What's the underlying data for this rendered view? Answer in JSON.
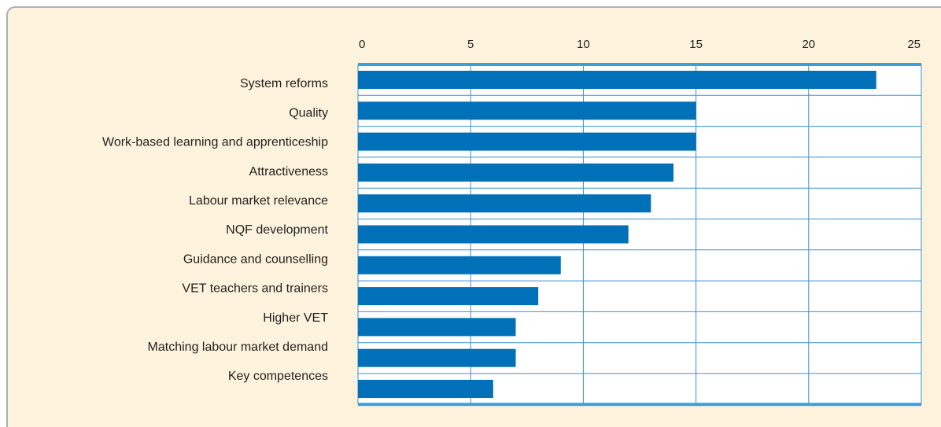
{
  "chart_data": {
    "type": "hbar",
    "categories": [
      "System reforms",
      "Quality",
      "Work-based learning and apprenticeship",
      "Attractiveness",
      "Labour market relevance",
      "NQF development",
      "Guidance and counselling",
      "VET teachers and trainers",
      "Higher VET",
      "Matching labour market demand",
      "Key competences"
    ],
    "values": [
      23,
      15,
      15,
      14,
      13,
      12,
      9,
      8,
      7,
      7,
      6
    ],
    "color": "#0070b8",
    "xlim": [
      0,
      25
    ],
    "xticks": [
      0,
      5,
      10,
      15,
      20,
      25
    ],
    "grid": true
  }
}
